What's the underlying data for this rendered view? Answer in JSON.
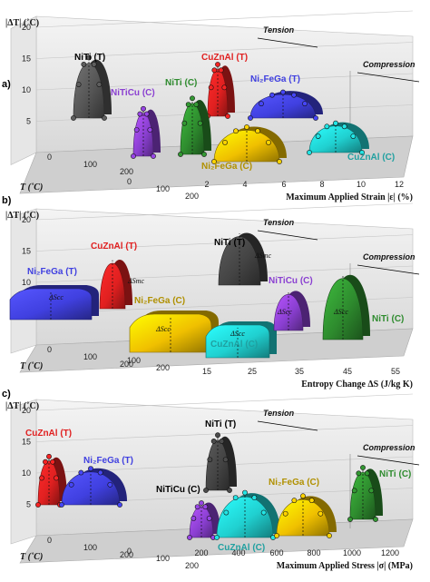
{
  "chart_data": [
    {
      "panel": "a)",
      "type": "area",
      "ylabel": "|ΔT| (˚C)",
      "zlabel": "T (˚C)",
      "xlabel": "Maximum Applied Strain |ε| (%)",
      "y_ticks": [
        "5",
        "10",
        "15",
        "20"
      ],
      "x_ticks": [
        "2",
        "4",
        "6",
        "8",
        "10",
        "12"
      ],
      "z_ticks": [
        "0",
        "100",
        "200"
      ],
      "z_ticks_front": [
        "0",
        "100",
        "200"
      ],
      "regions": [
        "Tension",
        "Compression"
      ],
      "series": [
        {
          "name": "NiTi (T)",
          "color": "#555555",
          "x": 3.2,
          "y_peak": 18
        },
        {
          "name": "NiTiCu (C)",
          "color": "#8a3fd1",
          "x": 4.2,
          "y_peak": 7.5
        },
        {
          "name": "CuZnAl (T)",
          "color": "#e02020",
          "x": 6.0,
          "y_peak": 13
        },
        {
          "name": "NiTi (C)",
          "color": "#2e8b2e",
          "x": 5.0,
          "y_peak": 11
        },
        {
          "name": "Ni₂FeGa (T)",
          "color": "#4040e0",
          "x": 7.5,
          "y_peak": 8
        },
        {
          "name": "Ni₂FeGa (C)",
          "color": "#f0c000",
          "x": 5.5,
          "y_peak": 3.5
        },
        {
          "name": "CuZnAl (C)",
          "color": "#20d0d0",
          "x": 7.8,
          "y_peak": 3.0
        }
      ]
    },
    {
      "panel": "b)",
      "type": "area",
      "ylabel": "|ΔT| (˚C)",
      "zlabel": "T (˚C)",
      "xlabel": "Entropy Change ΔS (J/kg K)",
      "y_ticks": [
        "5",
        "10",
        "15",
        "20"
      ],
      "x_ticks": [
        "15",
        "25",
        "35",
        "45",
        "55"
      ],
      "z_ticks": [
        "0",
        "100",
        "200"
      ],
      "z_ticks_front": [
        "100",
        "200"
      ],
      "regions": [
        "Tension",
        "Compression"
      ],
      "series": [
        {
          "name": "Ni₂FeGa (T)",
          "color": "#4040e0",
          "x_range": [
            3,
            15
          ],
          "y_peak": 6,
          "marker": "ΔScc"
        },
        {
          "name": "CuZnAl (T)",
          "color": "#e02020",
          "x_range": [
            18,
            22
          ],
          "y_peak": 14,
          "marker": "ΔSmc"
        },
        {
          "name": "NiTi (T)",
          "color": "#444444",
          "x_range": [
            32,
            38
          ],
          "y_peak": 19,
          "marker": "ΔSmc"
        },
        {
          "name": "Ni₂FeGa (C)",
          "color": "#f0c000",
          "x_range": [
            15,
            22
          ],
          "y_peak": 5.5,
          "marker": "ΔScc"
        },
        {
          "name": "CuZnAl (C)",
          "color": "#20d0d0",
          "x_range": [
            22,
            30
          ],
          "y_peak": 5.0,
          "marker": "ΔScc"
        },
        {
          "name": "NiTiCu (C)",
          "color": "#8a3fd1",
          "x_range": [
            30,
            35
          ],
          "y_peak": 10,
          "marker": "ΔScc"
        },
        {
          "name": "NiTi (C)",
          "color": "#2e8b2e",
          "x_range": [
            45,
            52
          ],
          "y_peak": 15,
          "marker": "ΔScc"
        }
      ]
    },
    {
      "panel": "c)",
      "type": "area",
      "ylabel": "|ΔT| (˚C)",
      "zlabel": "T (˚C)",
      "xlabel": "Maximum Applied Stress |σ| (MPa)",
      "y_ticks": [
        "5",
        "10",
        "15",
        "20"
      ],
      "x_ticks": [
        "200",
        "400",
        "600",
        "800",
        "1000",
        "1200"
      ],
      "z_ticks": [
        "0",
        "100",
        "200"
      ],
      "z_ticks_front": [
        "0",
        "100",
        "200"
      ],
      "regions": [
        "Tension",
        "Compression"
      ],
      "series": [
        {
          "name": "CuZnAl (T)",
          "color": "#e02020",
          "x": 250,
          "y_peak": 12
        },
        {
          "name": "Ni₂FeGa (T)",
          "color": "#4040e0",
          "x": 350,
          "y_peak": 7
        },
        {
          "name": "NiTi (T)",
          "color": "#444444",
          "x": 650,
          "y_peak": 18
        },
        {
          "name": "NiTiCu (C)",
          "color": "#8a3fd1",
          "x": 580,
          "y_peak": 7
        },
        {
          "name": "CuZnAl (C)",
          "color": "#20d0d0",
          "x": 700,
          "y_peak": 5.5
        },
        {
          "name": "Ni₂FeGa (C)",
          "color": "#f0c000",
          "x": 820,
          "y_peak": 4.5
        },
        {
          "name": "NiTi (C)",
          "color": "#2e8b2e",
          "x": 1100,
          "y_peak": 11
        }
      ]
    }
  ]
}
